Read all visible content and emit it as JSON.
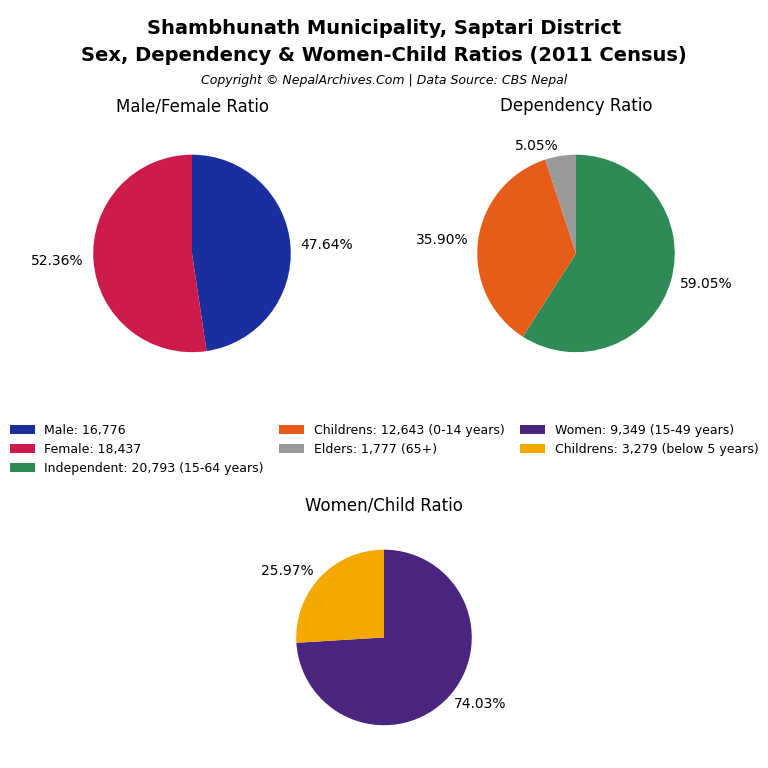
{
  "title": "Shambhunath Municipality, Saptari District",
  "subtitle": "Sex, Dependency & Women-Child Ratios (2011 Census)",
  "annotations": [
    "Copyright © NepalArchives.Com | Data Source: CBS Nepal"
  ],
  "chart_data": [
    {
      "type": "pie",
      "title": "Male/Female Ratio",
      "categories": [
        "Male: 16,776",
        "Female: 18,437"
      ],
      "values": [
        47.64,
        52.36
      ],
      "value_labels": [
        "47.64%",
        "52.36%"
      ],
      "colors": [
        "#1a2e9e",
        "#cc1a4a"
      ],
      "data_labels": true,
      "legend": "center"
    },
    {
      "type": "pie",
      "title": "Dependency Ratio",
      "categories": [
        "Independent: 20,793 (15-64 years)",
        "Childrens: 12,643 (0-14 years)",
        "Elders: 1,777 (65+)"
      ],
      "values": [
        59.05,
        35.9,
        5.05
      ],
      "value_labels": [
        "59.05%",
        "35.90%",
        "5.05%"
      ],
      "colors": [
        "#2e8b57",
        "#e85c1a",
        "#999999"
      ],
      "data_labels": true,
      "legend": "center"
    },
    {
      "type": "pie",
      "title": "Women/Child Ratio",
      "categories": [
        "Women: 9,349 (15-49 years)",
        "Childrens: 3,279 (below 5 years)"
      ],
      "values": [
        74.03,
        25.97
      ],
      "value_labels": [
        "74.03%",
        "25.97%"
      ],
      "colors": [
        "#4a2580",
        "#f5a800"
      ],
      "data_labels": true,
      "legend": "center"
    }
  ]
}
